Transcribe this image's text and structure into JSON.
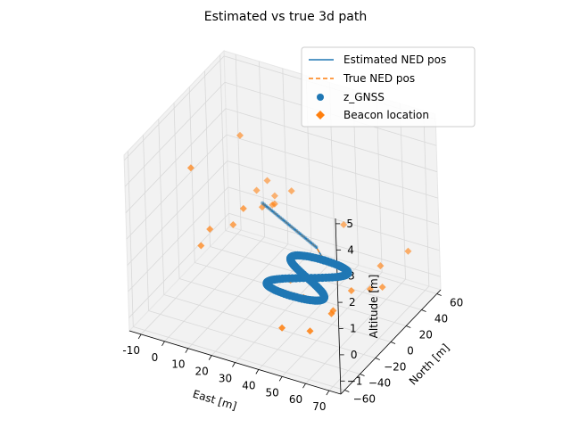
{
  "chart_data": {
    "type": "scatter",
    "projection": "3d",
    "title": "Estimated vs true 3d path",
    "xlabel": "East [m]",
    "ylabel": "North [m]",
    "zlabel": "Altitude [m]",
    "xlim": [
      -15,
      75
    ],
    "ylim": [
      -65,
      65
    ],
    "zlim": [
      -1.5,
      5.2
    ],
    "xticks": [
      -10,
      0,
      10,
      20,
      30,
      40,
      50,
      60,
      70
    ],
    "yticks": [
      -60,
      -40,
      -20,
      0,
      20,
      40,
      60
    ],
    "zticks": [
      -1,
      0,
      1,
      2,
      3,
      4,
      5
    ],
    "grid": true,
    "legend_position": "upper-right",
    "legend": [
      {
        "label": "Estimated NED pos",
        "style": "solid-line",
        "color": "#1f77b4"
      },
      {
        "label": "True NED pos",
        "style": "dashed-line",
        "color": "#ff7f0e"
      },
      {
        "label": "z_GNSS",
        "style": "circle-marker",
        "color": "#1f77b4"
      },
      {
        "label": "Beacon location",
        "style": "diamond-marker",
        "color": "#ff7f0e"
      }
    ],
    "path": {
      "description": "figure-eight trajectory centred on East 40 m, North 0 m at altitude 0",
      "center": [
        40,
        0,
        0
      ],
      "amplitude_east": 12,
      "amplitude_north": 22,
      "sample_count": 120
    },
    "tail": {
      "start": [
        4,
        52,
        0.3
      ],
      "end": [
        34,
        30,
        0.1
      ]
    },
    "beacons": [
      [
        -12,
        10,
        2.5
      ],
      [
        0,
        38,
        3.2
      ],
      [
        4,
        45,
        1.0
      ],
      [
        7,
        50,
        1.3
      ],
      [
        10,
        50,
        0.8
      ],
      [
        12,
        28,
        1.1
      ],
      [
        13,
        38,
        0.9
      ],
      [
        16,
        32,
        1.2
      ],
      [
        20,
        42,
        1.5
      ],
      [
        8,
        16,
        1.3
      ],
      [
        -8,
        8,
        -0.3
      ],
      [
        -6,
        14,
        0.2
      ],
      [
        2,
        20,
        0.4
      ],
      [
        30,
        8,
        -0.6
      ],
      [
        45,
        24,
        -0.6
      ],
      [
        42,
        42,
        0.8
      ],
      [
        52,
        -4,
        -0.8
      ],
      [
        60,
        20,
        -0.5
      ],
      [
        62,
        28,
        0.2
      ],
      [
        55,
        -15,
        -0.5
      ],
      [
        45,
        -20,
        0.0
      ],
      [
        38,
        -28,
        -1.1
      ],
      [
        70,
        40,
        0.6
      ],
      [
        50,
        -28,
        -0.9
      ],
      [
        66,
        18,
        -0.2
      ],
      [
        56,
        8,
        -0.3
      ]
    ],
    "colors": {
      "estimated": "#1f77b4",
      "true": "#ff7f0e",
      "gnss": "#1f77b4",
      "beacon": "#ff7f0e",
      "pane": "#f2f2f2",
      "grid": "#d9d9d9"
    }
  }
}
